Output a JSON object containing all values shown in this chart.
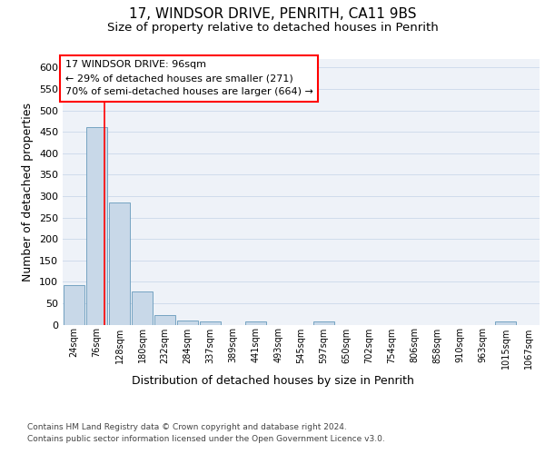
{
  "title1": "17, WINDSOR DRIVE, PENRITH, CA11 9BS",
  "title2": "Size of property relative to detached houses in Penrith",
  "xlabel": "Distribution of detached houses by size in Penrith",
  "ylabel": "Number of detached properties",
  "footnote1": "Contains HM Land Registry data © Crown copyright and database right 2024.",
  "footnote2": "Contains public sector information licensed under the Open Government Licence v3.0.",
  "annotation_line1": "17 WINDSOR DRIVE: 96sqm",
  "annotation_line2": "← 29% of detached houses are smaller (271)",
  "annotation_line3": "70% of semi-detached houses are larger (664) →",
  "bar_labels": [
    "24sqm",
    "76sqm",
    "128sqm",
    "180sqm",
    "232sqm",
    "284sqm",
    "337sqm",
    "389sqm",
    "441sqm",
    "493sqm",
    "545sqm",
    "597sqm",
    "650sqm",
    "702sqm",
    "754sqm",
    "806sqm",
    "858sqm",
    "910sqm",
    "963sqm",
    "1015sqm",
    "1067sqm"
  ],
  "bar_values": [
    93,
    462,
    285,
    78,
    22,
    10,
    8,
    0,
    7,
    0,
    0,
    7,
    0,
    0,
    0,
    0,
    0,
    0,
    0,
    7,
    0
  ],
  "bar_color": "#c8d8e8",
  "bar_edge_color": "#6699bb",
  "red_line_x": 1.35,
  "ylim": [
    0,
    620
  ],
  "yticks": [
    0,
    50,
    100,
    150,
    200,
    250,
    300,
    350,
    400,
    450,
    500,
    550,
    600
  ],
  "bg_color": "#eef2f8",
  "grid_color": "#d0dcec",
  "title1_fontsize": 11,
  "title2_fontsize": 9.5,
  "xlabel_fontsize": 9,
  "ylabel_fontsize": 9,
  "footnote_fontsize": 6.5,
  "annotation_fontsize": 8
}
